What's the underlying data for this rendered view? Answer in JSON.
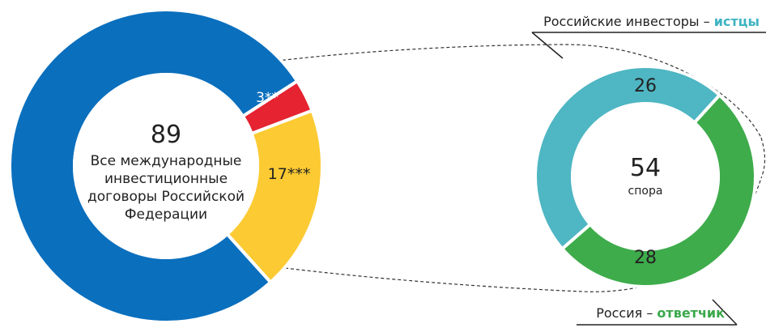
{
  "colors": {
    "blue": "#0a6fbd",
    "red": "#e52331",
    "yellow": "#fcca32",
    "teal": "#4fb6c3",
    "green": "#3eac4b",
    "text": "#222222",
    "accent_teal": "#3fb3c2",
    "accent_green": "#3aa84a"
  },
  "chart_data": [
    {
      "type": "pie",
      "center_value": "89",
      "center_text": [
        "Все международные",
        "инвестиционные",
        "договоры Российской",
        "Федерации"
      ],
      "slices": [
        {
          "value": 69,
          "label": ""
        },
        {
          "value": 3,
          "label": "3**"
        },
        {
          "value": 17,
          "label": "17***"
        }
      ]
    },
    {
      "type": "pie",
      "center_value": "54",
      "center_text": "спора",
      "slices": [
        {
          "value": 26,
          "label": "26"
        },
        {
          "value": 28,
          "label": "28"
        }
      ]
    }
  ],
  "annotations": {
    "investors_prefix": "Российские инвесторы – ",
    "investors_role": "истцы",
    "russia_prefix": "Россия – ",
    "russia_role": "ответчик"
  }
}
